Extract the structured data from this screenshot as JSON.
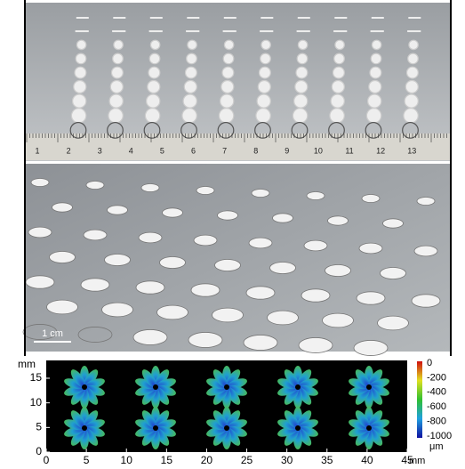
{
  "ruler": {
    "labels": [
      1,
      2,
      3,
      4,
      5,
      6,
      7,
      8,
      9,
      10,
      11,
      12,
      13
    ]
  },
  "scale_bar": {
    "label": "1 cm"
  },
  "height_map": {
    "y_unit": "mm",
    "x_unit": "mm",
    "xticks": [
      0,
      5,
      10,
      15,
      20,
      25,
      30,
      35,
      40,
      45
    ],
    "yticks": [
      0,
      5,
      10,
      15
    ],
    "colorbar": {
      "ticks": [
        0,
        -200,
        -400,
        -600,
        -800,
        -1000
      ],
      "unit": "μm"
    }
  }
}
